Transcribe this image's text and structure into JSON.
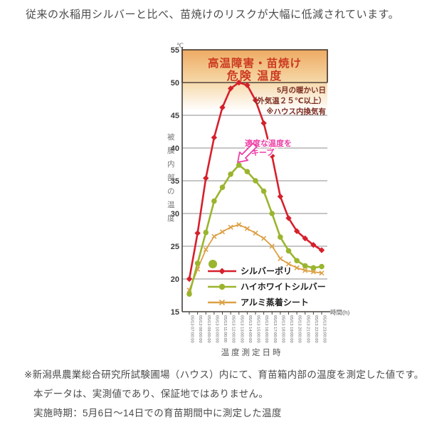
{
  "page": {
    "header": "従来の水稲用シルバーと比べ、苗焼けのリスクが大幅に低減されています。",
    "footnotes": [
      "※新潟県農業総合研究所試験圃場（ハウス）内にて、育苗箱内部の温度を測定した値です。",
      "本データは、実測値であり、保証地ではありません。",
      "実施時期：5月6日～14日での育苗期間中に測定した温度"
    ]
  },
  "chart_data": {
    "type": "line",
    "title_band": [
      "高温障害・苗焼け",
      "危険 温度"
    ],
    "condition_note": [
      "5月の暖かい日",
      "（外気温２５℃以上）",
      "※ハウス内換気有"
    ],
    "callout": [
      "適度な温度を",
      "キープ"
    ],
    "unit_label": "℃",
    "ylabel": "被膜内部の温度",
    "xlabel": "温度測定日時",
    "x_unit": "時間(h)",
    "ylim": [
      15,
      55
    ],
    "yticks": [
      55,
      50,
      45,
      40,
      35,
      30,
      25,
      20,
      15
    ],
    "danger_zone": [
      50,
      55
    ],
    "grid": true,
    "legend_position": "inside-lower-right",
    "x": [
      "05/13 07:00:00",
      "05/13 08:00:00",
      "05/13 09:00:00",
      "05/13 10:00:00",
      "05/13 11:00:00",
      "05/13 12:00:00",
      "05/13 13:00:00",
      "05/13 14:00:00",
      "05/13 15:00:00",
      "05/13 16:00:00",
      "05/13 17:00:00",
      "05/13 18:00:00",
      "05/13 19:00:00",
      "05/13 20:00:00",
      "05/13 21:00:00",
      "05/13 22:00:00",
      "05/13 23:00:00"
    ],
    "series": [
      {
        "name": "シルバーポリ",
        "color": "#d6202c",
        "marker": "diamond",
        "line_width": 2.6,
        "values": [
          20.0,
          27.0,
          35.4,
          41.6,
          46.2,
          49.1,
          50.0,
          49.6,
          47.3,
          43.8,
          38.8,
          32.6,
          29.3,
          27.3,
          26.2,
          25.2,
          24.4
        ]
      },
      {
        "name": "ハイホワイトシルバー",
        "color": "#9ab52e",
        "marker": "circle",
        "line_width": 2.6,
        "values": [
          17.7,
          22.4,
          27.1,
          31.9,
          34.0,
          36.0,
          37.4,
          36.4,
          35.0,
          33.4,
          30.0,
          26.4,
          24.3,
          22.8,
          22.0,
          21.7,
          21.9
        ]
      },
      {
        "name": "アルミ蒸着シート",
        "color": "#dda044",
        "marker": "x",
        "line_width": 1.8,
        "values": [
          18.3,
          21.5,
          24.5,
          26.5,
          27.2,
          27.9,
          28.3,
          27.7,
          27.0,
          26.2,
          25.0,
          23.1,
          22.3,
          21.7,
          21.3,
          21.1,
          20.9
        ]
      }
    ],
    "colors": {
      "band_top": "#eeab63",
      "band_bottom": "#f6d8a9",
      "band_border": "#52443a",
      "band_title": "#cb3a20",
      "condition_note": "#7c2d21",
      "callout": "#ee3fa5",
      "grid": "#8e8e8e",
      "axis": "#46413c",
      "tick_text": "#3c3c3c",
      "small_text": "#666666"
    }
  }
}
